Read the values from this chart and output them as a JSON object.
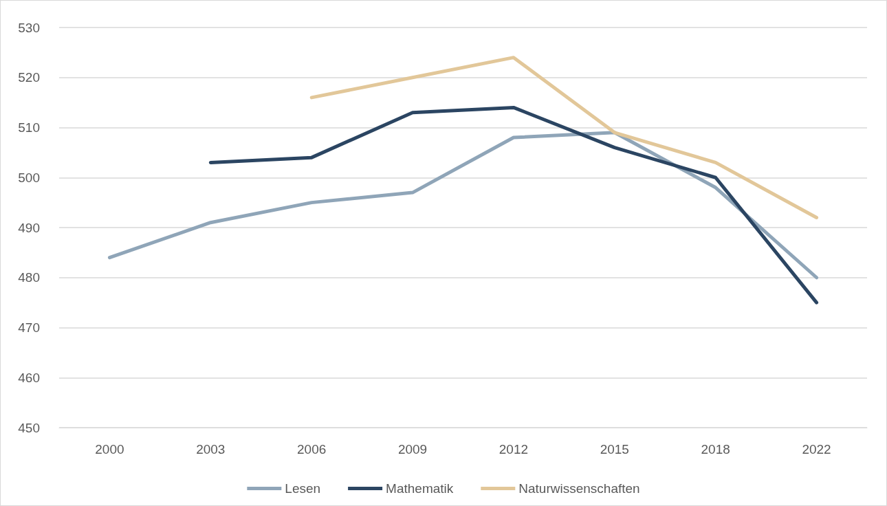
{
  "chart_data": {
    "type": "line",
    "categories": [
      "2000",
      "2003",
      "2006",
      "2009",
      "2012",
      "2015",
      "2018",
      "2022"
    ],
    "series": [
      {
        "name": "Lesen",
        "color": "#8fa5b8",
        "values": [
          484,
          491,
          495,
          497,
          508,
          509,
          498,
          480
        ]
      },
      {
        "name": "Mathematik",
        "color": "#2b4562",
        "values": [
          null,
          503,
          504,
          513,
          514,
          506,
          500,
          475
        ]
      },
      {
        "name": "Naturwissenschaften",
        "color": "#e2c799",
        "values": [
          null,
          null,
          516,
          520,
          524,
          509,
          503,
          492
        ]
      }
    ],
    "ylim": [
      450,
      530
    ],
    "yticks": [
      450,
      460,
      470,
      480,
      490,
      500,
      510,
      520,
      530
    ],
    "grid": "y",
    "legend": "bottom",
    "marker": "none",
    "line_style": "solid"
  }
}
